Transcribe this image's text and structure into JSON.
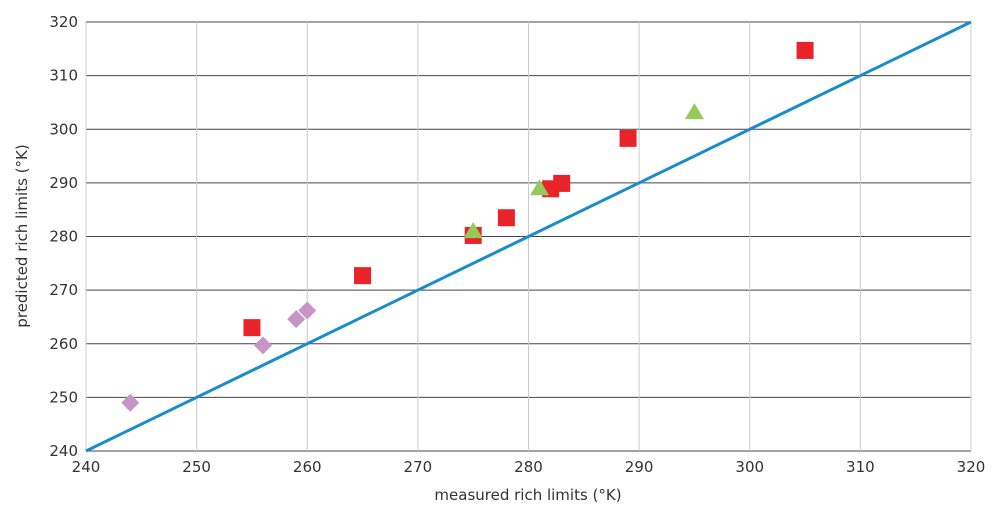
{
  "chart_data": {
    "type": "scatter",
    "xlabel": "measured rich limits (°K)",
    "ylabel": "predicted rich limits (°K)",
    "xlim": [
      240,
      320
    ],
    "ylim": [
      240,
      320
    ],
    "x_ticks": [
      240,
      250,
      260,
      270,
      280,
      290,
      300,
      310,
      320
    ],
    "y_ticks": [
      240,
      250,
      260,
      270,
      280,
      290,
      300,
      310,
      320
    ],
    "grid": true,
    "series": [
      {
        "marker": "diamond",
        "color": "#c794c8",
        "points": [
          [
            244,
            249
          ],
          [
            256,
            259.7
          ],
          [
            259,
            264.6
          ],
          [
            260,
            266.2
          ]
        ]
      },
      {
        "marker": "square",
        "color": "#e8232a",
        "points": [
          [
            255,
            263
          ],
          [
            265,
            272.7
          ],
          [
            275,
            280.2
          ],
          [
            278,
            283.5
          ],
          [
            282,
            288.9
          ],
          [
            283,
            289.9
          ],
          [
            289,
            298.3
          ],
          [
            305,
            314.7
          ]
        ]
      },
      {
        "marker": "triangle",
        "color": "#96c95a",
        "points": [
          [
            275,
            281
          ],
          [
            281,
            289
          ],
          [
            295,
            303.2
          ]
        ]
      }
    ],
    "reference_line": {
      "from": [
        240,
        240
      ],
      "to": [
        320,
        320
      ],
      "color": "#1a8ccc"
    }
  }
}
